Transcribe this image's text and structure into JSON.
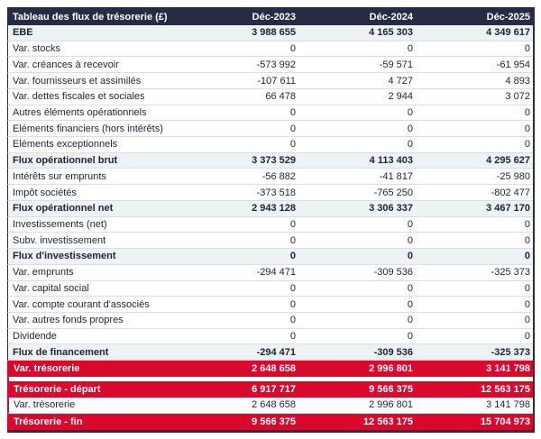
{
  "table": {
    "title": "Tableau des flux de trésorerie (£)",
    "columns": [
      "Déc-2023",
      "Déc-2024",
      "Déc-2025"
    ],
    "rows": [
      {
        "label": "EBE",
        "values": [
          "3 988 655",
          "4 165 303",
          "4 349 617"
        ],
        "style": "subtotal"
      },
      {
        "label": "Var. stocks",
        "values": [
          "0",
          "0",
          "0"
        ],
        "style": "normal"
      },
      {
        "label": "Var. créances à recevoir",
        "values": [
          "-573 992",
          "-59 571",
          "-61 954"
        ],
        "style": "normal"
      },
      {
        "label": "Var. fournisseurs et assimilés",
        "values": [
          "-107 611",
          "4 727",
          "4 893"
        ],
        "style": "normal"
      },
      {
        "label": "Var. dettes fiscales et sociales",
        "values": [
          "66 478",
          "2 944",
          "3 072"
        ],
        "style": "normal"
      },
      {
        "label": "Autres éléments opérationnels",
        "values": [
          "0",
          "0",
          "0"
        ],
        "style": "normal"
      },
      {
        "label": "Eléments financiers (hors intérêts)",
        "values": [
          "0",
          "0",
          "0"
        ],
        "style": "normal"
      },
      {
        "label": "Eléments exceptionnels",
        "values": [
          "0",
          "0",
          "0"
        ],
        "style": "normal"
      },
      {
        "label": "Flux opérationnel brut",
        "values": [
          "3 373 529",
          "4 113 403",
          "4 295 627"
        ],
        "style": "subtotal"
      },
      {
        "label": "Intérêts sur emprunts",
        "values": [
          "-56 882",
          "-41 817",
          "-25 980"
        ],
        "style": "normal"
      },
      {
        "label": "Impôt sociétés",
        "values": [
          "-373 518",
          "-765 250",
          "-802 477"
        ],
        "style": "normal"
      },
      {
        "label": "Flux opérationnel net",
        "values": [
          "2 943 128",
          "3 306 337",
          "3 467 170"
        ],
        "style": "subtotal"
      },
      {
        "label": "Investissements (net)",
        "values": [
          "0",
          "0",
          "0"
        ],
        "style": "normal"
      },
      {
        "label": "Subv. investissement",
        "values": [
          "0",
          "0",
          "0"
        ],
        "style": "normal"
      },
      {
        "label": "Flux d'investissement",
        "values": [
          "0",
          "0",
          "0"
        ],
        "style": "subtotal"
      },
      {
        "label": "Var. emprunts",
        "values": [
          "-294 471",
          "-309 536",
          "-325 373"
        ],
        "style": "normal"
      },
      {
        "label": "Var. capital social",
        "values": [
          "0",
          "0",
          "0"
        ],
        "style": "normal"
      },
      {
        "label": "Var. compte courant d'associés",
        "values": [
          "0",
          "0",
          "0"
        ],
        "style": "normal"
      },
      {
        "label": "Var. autres fonds propres",
        "values": [
          "0",
          "0",
          "0"
        ],
        "style": "normal"
      },
      {
        "label": "Dividende",
        "values": [
          "0",
          "0",
          "0"
        ],
        "style": "normal"
      },
      {
        "label": "Flux de financement",
        "values": [
          "-294 471",
          "-309 536",
          "-325 373"
        ],
        "style": "subtotal"
      },
      {
        "label": "Var. trésorerie",
        "values": [
          "2 648 658",
          "2 996 801",
          "3 141 798"
        ],
        "style": "highlight"
      }
    ],
    "summary_rows": [
      {
        "label": "Trésorerie - départ",
        "values": [
          "6 917 717",
          "9 566 375",
          "12 563 175"
        ],
        "style": "highlight"
      },
      {
        "label": "Var. trésorerie",
        "values": [
          "2 648 658",
          "2 996 801",
          "3 141 798"
        ],
        "style": "normal"
      },
      {
        "label": "Trésorerie - fin",
        "values": [
          "9 566 375",
          "12 563 175",
          "15 704 973"
        ],
        "style": "highlight"
      }
    ]
  },
  "colors": {
    "header_bg": "#272c45",
    "header_text": "#ffffff",
    "subtotal_bg": "#edf2f5",
    "highlight_bg": "#d9082c",
    "highlight_text": "#ffffff",
    "grid_line": "#dadde2",
    "body_text": "#1e2235"
  }
}
